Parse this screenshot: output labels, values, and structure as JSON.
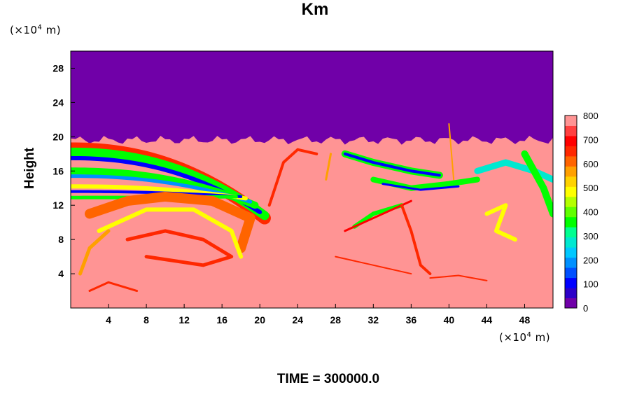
{
  "chart_data": {
    "type": "heatmap",
    "title": "Km",
    "ylabel": "Height",
    "x_unit_prefix": "(×10",
    "x_unit_exp": "4",
    "x_unit_suffix": " m)",
    "y_unit_prefix": "(×10",
    "y_unit_exp": "4",
    "y_unit_suffix": " m)",
    "xlim": [
      0,
      51
    ],
    "ylim": [
      0,
      30
    ],
    "xticks": [
      4,
      8,
      12,
      16,
      20,
      24,
      28,
      32,
      36,
      40,
      44,
      48
    ],
    "yticks": [
      4,
      8,
      12,
      16,
      20,
      24,
      28
    ],
    "colorbar": {
      "min": 0,
      "max": 800,
      "ticks": [
        0,
        100,
        200,
        300,
        400,
        500,
        600,
        700,
        800
      ],
      "colors": [
        "#7000a8",
        "#2c00c8",
        "#0000ff",
        "#0050ff",
        "#0090ff",
        "#00c8ff",
        "#00e8d0",
        "#00ff90",
        "#00ff00",
        "#60ff00",
        "#b4ff00",
        "#ffff00",
        "#ffd200",
        "#ffa000",
        "#ff6400",
        "#ff2800",
        "#ff0000",
        "#ff4040",
        "#ff9494"
      ]
    },
    "field_notes": "Eddy viscosity field: ~800 (pink) over most of the lower domain below ~20; 0 (purple) above ~20; strong low-valued (blue/green) bands in an arc from x≈0–22 at heights 10–19 and scattered structures x≈28–51."
  },
  "footer": {
    "time_label": "TIME = 300000.0"
  }
}
